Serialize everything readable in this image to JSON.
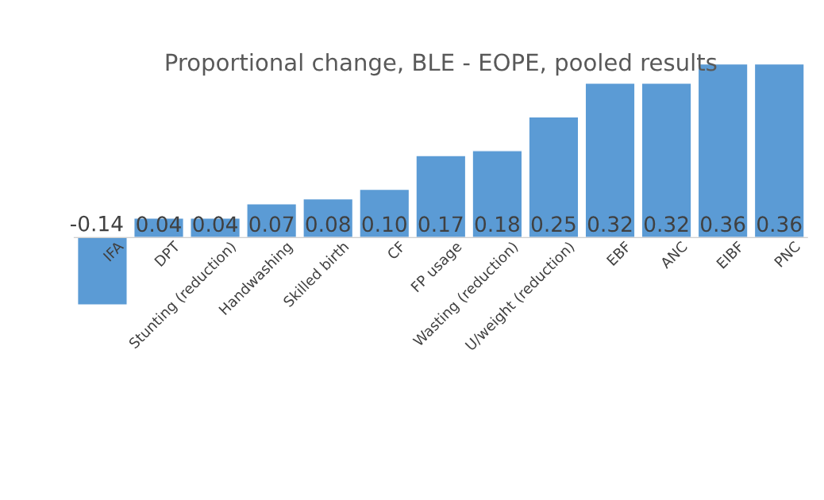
{
  "chart_data": {
    "type": "bar",
    "title": "Proportional change, BLE - EOPE, pooled results",
    "categories": [
      "IFA",
      "DPT",
      "Stunting (reduction)",
      "Handwashing",
      "Skilled birth",
      "CF",
      "FP usage",
      "Wasting (reduction)",
      "U/weight (reduction)",
      "EBF",
      "ANC",
      "EIBF",
      "PNC"
    ],
    "values": [
      -0.14,
      0.04,
      0.04,
      0.07,
      0.08,
      0.1,
      0.17,
      0.18,
      0.25,
      0.32,
      0.32,
      0.36,
      0.36
    ],
    "value_labels": [
      "-0.14",
      "0.04",
      "0.04",
      "0.07",
      "0.08",
      "0.10",
      "0.17",
      "0.18",
      "0.25",
      "0.32",
      "0.32",
      "0.36",
      "0.36"
    ],
    "color": "#5b9bd5"
  }
}
